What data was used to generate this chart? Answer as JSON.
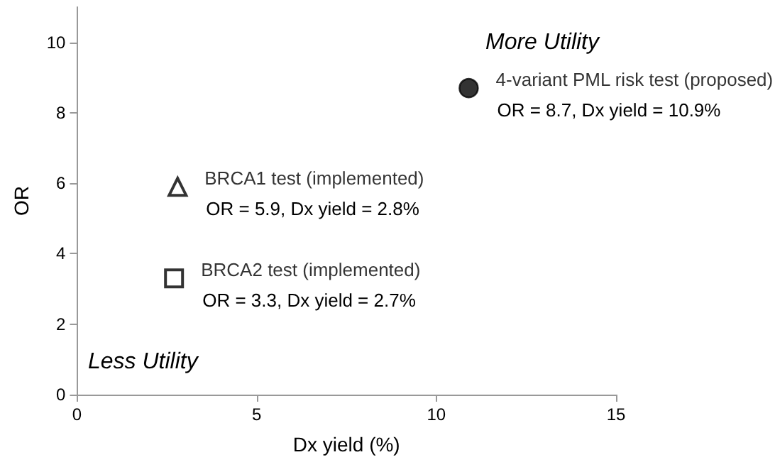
{
  "chart_data": {
    "type": "scatter",
    "xlabel": "Dx yield (%)",
    "ylabel": "OR",
    "xlim": [
      0,
      15
    ],
    "xticks": [
      0,
      5,
      10,
      15
    ],
    "ylim": [
      0,
      11
    ],
    "yticks": [
      0,
      2,
      4,
      6,
      8,
      10
    ],
    "grid": false,
    "legend": false,
    "series": [
      {
        "name": "4-variant PML risk test (proposed)",
        "color": "#000000",
        "marker": "circle",
        "x": [
          10.9
        ],
        "values": [
          8.7
        ]
      },
      {
        "name": "BRCA1 test (implemented)",
        "color": "#000000",
        "marker": "triangle",
        "x": [
          2.8
        ],
        "values": [
          5.9
        ]
      },
      {
        "name": "BRCA2 test (implemented)",
        "color": "#000000",
        "marker": "square",
        "x": [
          2.7
        ],
        "values": [
          3.3
        ]
      }
    ],
    "annotations": [
      {
        "text": "OR = 8.7, Dx yield = 10.9%",
        "x": 10.9,
        "y": 8.7
      },
      {
        "text": "OR = 5.9, Dx yield = 2.8%",
        "x": 2.8,
        "y": 5.9
      },
      {
        "text": "OR = 3.3, Dx yield = 2.7%",
        "x": 2.7,
        "y": 3.3
      },
      "More Utility",
      "Less Utility"
    ]
  }
}
